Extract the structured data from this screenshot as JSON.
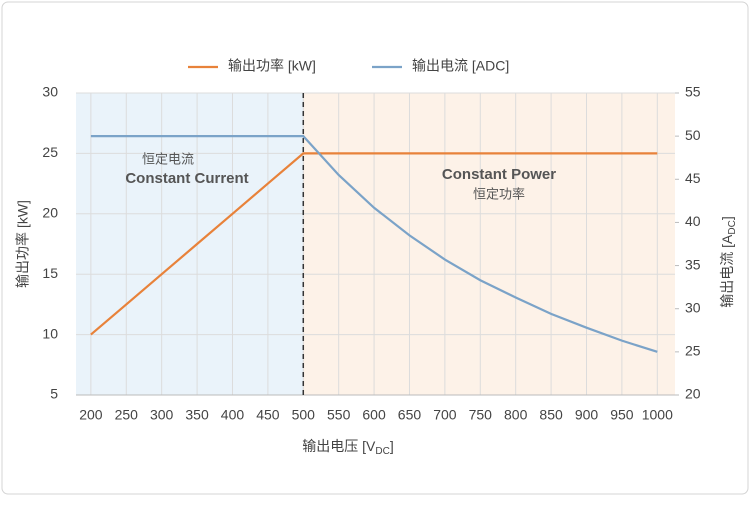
{
  "chart_data": {
    "type": "line",
    "x": [
      200,
      250,
      300,
      350,
      400,
      450,
      500,
      550,
      600,
      650,
      700,
      750,
      800,
      850,
      900,
      950,
      1000
    ],
    "series": [
      {
        "name": "输出功率 [kW]",
        "color": "#e8823a",
        "values": [
          10,
          12.5,
          15,
          17.5,
          20,
          22.5,
          25,
          25,
          25,
          25,
          25,
          25,
          25,
          25,
          25,
          25,
          25
        ]
      },
      {
        "name": "输出电流 [ADC]",
        "color": "#7ba3c8",
        "axis": "y2",
        "values": [
          50,
          50,
          50,
          50,
          50,
          50,
          50,
          45.5,
          41.7,
          38.5,
          35.7,
          33.3,
          31.3,
          29.4,
          27.8,
          26.3,
          25
        ]
      }
    ],
    "xlim": [
      179,
      1025
    ],
    "xticks": [
      200,
      250,
      300,
      350,
      400,
      450,
      500,
      550,
      600,
      650,
      700,
      750,
      800,
      850,
      900,
      950,
      1000
    ],
    "ylim": [
      5,
      30
    ],
    "yticks": [
      5,
      10,
      15,
      20,
      25,
      30
    ],
    "y2lim": [
      20,
      55
    ],
    "y2ticks": [
      20,
      25,
      30,
      35,
      40,
      45,
      50,
      55
    ],
    "xlabel_parts": [
      "输出电压 [V",
      "DC",
      "]"
    ],
    "ylabel": "输出功率 [kW]",
    "y2label_parts": [
      "输出电流 [A",
      "DC",
      "]"
    ],
    "boundary": 500,
    "region_colors": [
      "#eaf3fa",
      "#fdf2e8"
    ],
    "annotations": [
      "恒定电流",
      "Constant Current",
      "Constant Power",
      "恒定功率"
    ],
    "grid": true,
    "legend": "top"
  }
}
